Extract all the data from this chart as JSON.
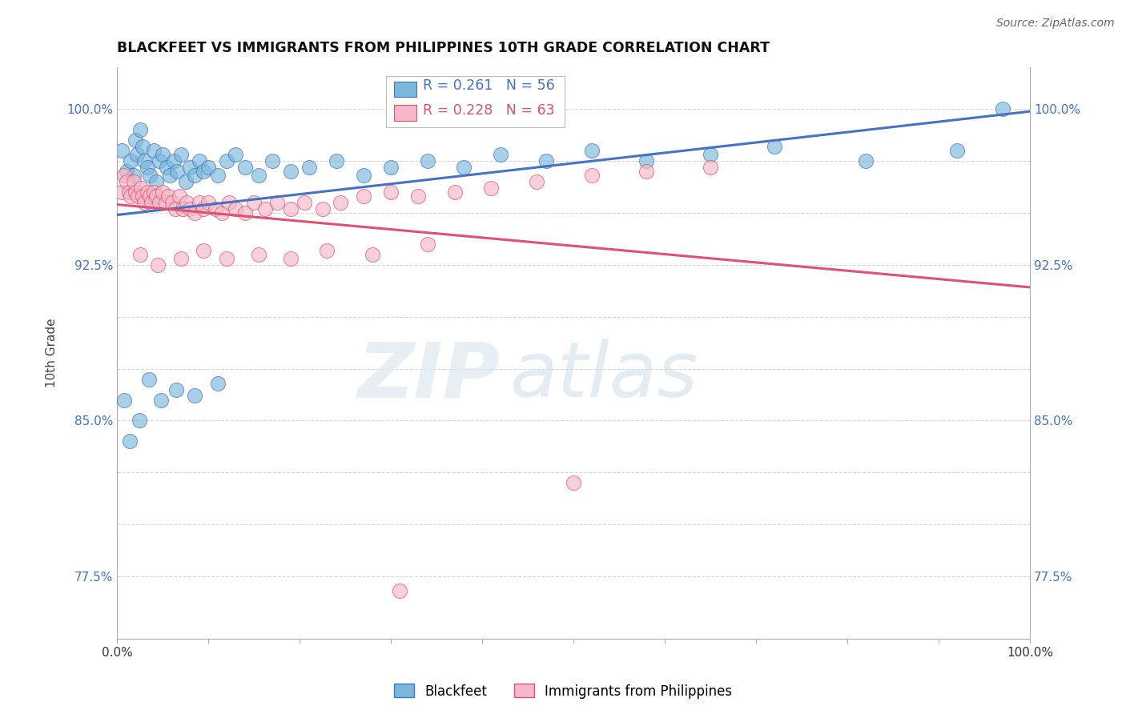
{
  "title": "BLACKFEET VS IMMIGRANTS FROM PHILIPPINES 10TH GRADE CORRELATION CHART",
  "source_text": "Source: ZipAtlas.com",
  "ylabel": "10th Grade",
  "xlabel": "",
  "xlim": [
    0.0,
    1.0
  ],
  "ylim": [
    0.745,
    1.02
  ],
  "yticks": [
    0.775,
    0.8,
    0.825,
    0.85,
    0.875,
    0.9,
    0.925,
    0.95,
    0.975,
    1.0
  ],
  "ytick_labels": [
    "77.5%",
    "",
    "",
    "85.0%",
    "",
    "",
    "92.5%",
    "",
    "",
    "100.0%"
  ],
  "xticks": [
    0.0,
    0.1,
    0.2,
    0.3,
    0.4,
    0.5,
    0.6,
    0.7,
    0.8,
    0.9,
    1.0
  ],
  "xtick_labels": [
    "0.0%",
    "",
    "",
    "",
    "",
    "",
    "",
    "",
    "",
    "",
    "100.0%"
  ],
  "blue_color": "#7ab8d9",
  "pink_color": "#f4b8c8",
  "line_blue": "#4472c4",
  "line_pink": "#e05070",
  "legend_R_blue": "R = 0.261",
  "legend_N_blue": "N = 56",
  "legend_R_pink": "R = 0.228",
  "legend_N_pink": "N = 63",
  "watermark_zip": "ZIP",
  "watermark_atlas": "atlas",
  "blue_x": [
    0.005,
    0.01,
    0.015,
    0.018,
    0.02,
    0.022,
    0.025,
    0.028,
    0.03,
    0.033,
    0.036,
    0.04,
    0.043,
    0.046,
    0.05,
    0.054,
    0.058,
    0.062,
    0.066,
    0.07,
    0.075,
    0.08,
    0.085,
    0.09,
    0.095,
    0.1,
    0.11,
    0.12,
    0.13,
    0.14,
    0.155,
    0.17,
    0.19,
    0.21,
    0.24,
    0.27,
    0.3,
    0.34,
    0.38,
    0.42,
    0.47,
    0.52,
    0.58,
    0.65,
    0.72,
    0.82,
    0.92,
    0.97,
    0.008,
    0.014,
    0.024,
    0.035,
    0.048,
    0.065,
    0.085,
    0.11
  ],
  "blue_y": [
    0.98,
    0.97,
    0.975,
    0.968,
    0.985,
    0.978,
    0.99,
    0.982,
    0.975,
    0.972,
    0.968,
    0.98,
    0.965,
    0.975,
    0.978,
    0.972,
    0.968,
    0.975,
    0.97,
    0.978,
    0.965,
    0.972,
    0.968,
    0.975,
    0.97,
    0.972,
    0.968,
    0.975,
    0.978,
    0.972,
    0.968,
    0.975,
    0.97,
    0.972,
    0.975,
    0.968,
    0.972,
    0.975,
    0.972,
    0.978,
    0.975,
    0.98,
    0.975,
    0.978,
    0.982,
    0.975,
    0.98,
    1.0,
    0.86,
    0.84,
    0.85,
    0.87,
    0.86,
    0.865,
    0.862,
    0.868
  ],
  "pink_x": [
    0.005,
    0.008,
    0.01,
    0.013,
    0.015,
    0.018,
    0.02,
    0.023,
    0.026,
    0.028,
    0.03,
    0.033,
    0.036,
    0.038,
    0.04,
    0.043,
    0.046,
    0.05,
    0.053,
    0.056,
    0.06,
    0.064,
    0.068,
    0.072,
    0.076,
    0.08,
    0.085,
    0.09,
    0.095,
    0.1,
    0.108,
    0.115,
    0.123,
    0.13,
    0.14,
    0.15,
    0.162,
    0.175,
    0.19,
    0.205,
    0.225,
    0.245,
    0.27,
    0.3,
    0.33,
    0.37,
    0.41,
    0.46,
    0.52,
    0.58,
    0.65,
    0.5,
    0.025,
    0.045,
    0.07,
    0.095,
    0.12,
    0.155,
    0.19,
    0.23,
    0.28,
    0.34,
    0.31
  ],
  "pink_y": [
    0.96,
    0.968,
    0.965,
    0.96,
    0.958,
    0.965,
    0.96,
    0.958,
    0.962,
    0.958,
    0.955,
    0.96,
    0.958,
    0.955,
    0.96,
    0.958,
    0.955,
    0.96,
    0.955,
    0.958,
    0.955,
    0.952,
    0.958,
    0.952,
    0.955,
    0.952,
    0.95,
    0.955,
    0.952,
    0.955,
    0.952,
    0.95,
    0.955,
    0.952,
    0.95,
    0.955,
    0.952,
    0.955,
    0.952,
    0.955,
    0.952,
    0.955,
    0.958,
    0.96,
    0.958,
    0.96,
    0.962,
    0.965,
    0.968,
    0.97,
    0.972,
    0.82,
    0.93,
    0.925,
    0.928,
    0.932,
    0.928,
    0.93,
    0.928,
    0.932,
    0.93,
    0.935,
    0.768
  ]
}
